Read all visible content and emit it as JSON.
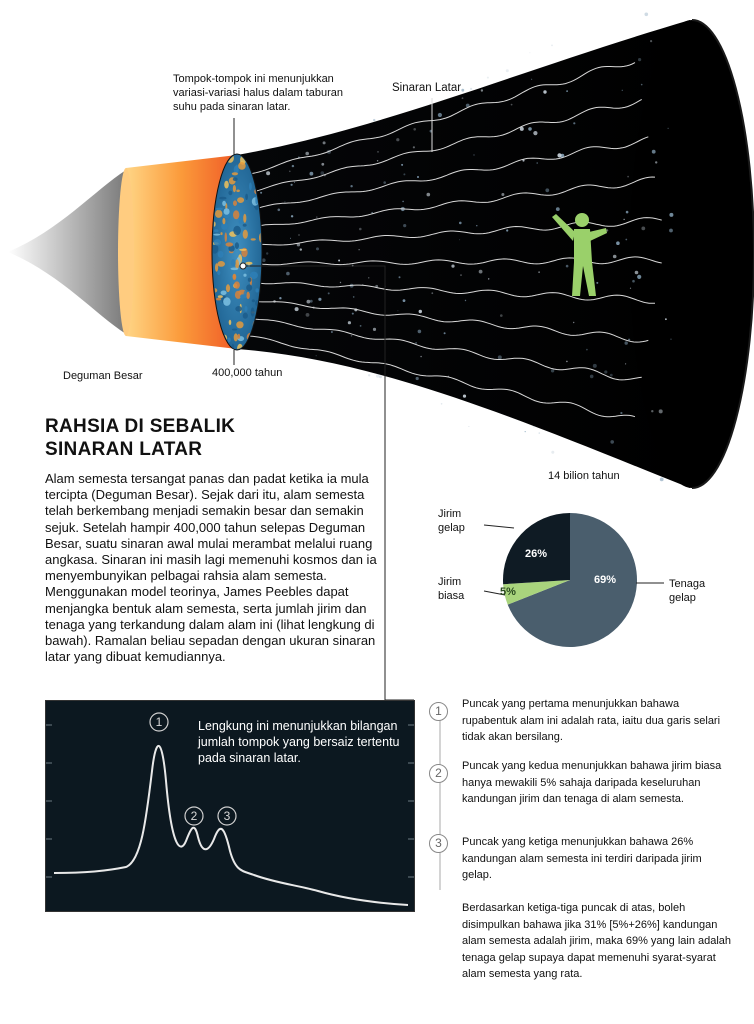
{
  "labels": {
    "fluctuations": "Tompok-tompok ini menunjukkan variasi-variasi halus dalam taburan suhu pada sinaran latar.",
    "background_radiation": "Sinaran Latar",
    "big_bang": "Deguman Besar",
    "years_400k": "400,000 tahun",
    "years_14b": "14 bilion tahun"
  },
  "article": {
    "title_line1": "RAHSIA DI SEBALIK",
    "title_line2": "SINARAN LATAR",
    "body": "Alam semesta tersangat panas dan padat ketika ia mula tercipta (Deguman Besar). Sejak dari itu, alam semesta telah berkembang menjadi semakin besar dan semakin sejuk. Setelah hampir 400,000 tahun selepas Deguman Besar, suatu sinaran awal mulai merambat melalui ruang angkasa. Sinaran ini masih lagi memenuhi kosmos dan ia menyembunyikan pelbagai rahsia alam semesta. Menggunakan model teorinya, James Peebles dapat menjangka bentuk alam semesta, serta jumlah jirim dan tenaga yang terkandung dalam alam ini (lihat lengkung di bawah). Ramalan beliau sepadan dengan ukuran sinaran latar yang dibuat kemudiannya."
  },
  "pie": {
    "slices": [
      {
        "label": "Tenaga gelap",
        "label_line1": "Tenaga",
        "label_line2": "gelap",
        "value": 69,
        "pct": "69%",
        "color": "#4a5e6d"
      },
      {
        "label": "Jirim biasa",
        "label_line1": "Jirim",
        "label_line2": "biasa",
        "value": 5,
        "pct": "5%",
        "color": "#a9d47d"
      },
      {
        "label": "Jirim gelap",
        "label_line1": "Jirim",
        "label_line2": "gelap",
        "value": 26,
        "pct": "26%",
        "color": "#0f1b24"
      }
    ]
  },
  "curve": {
    "caption": "Lengkung ini menunjukkan bilangan jumlah tompok yang bersaiz tertentu pada sinaran latar.",
    "peak1": "1",
    "peak2": "2",
    "peak3": "3"
  },
  "notes": [
    {
      "num": "1",
      "text": "Puncak yang pertama menunjukkan bahawa rupabentuk alam ini adalah rata, iaitu dua garis selari tidak akan bersilang."
    },
    {
      "num": "2",
      "text": "Puncak yang kedua menunjukkan bahawa jirim biasa hanya mewakili 5% sahaja daripada keseluruhan kandungan jirim dan tenaga di alam semesta."
    },
    {
      "num": "3",
      "text": "Puncak yang ketiga menunjukkan bahawa 26% kandungan alam semesta ini terdiri daripada jirim gelap."
    }
  ],
  "conclusion": "Berdasarkan ketiga-tiga puncak di atas, boleh disimpulkan bahawa jika 31% [5%+26%] kandungan alam semesta adalah jirim, maka 69% yang lain adalah tenaga gelap supaya dapat memenuhi syarat-syarat alam semesta yang rata.",
  "colors": {
    "space": "#000000",
    "big_bang_inner": "#ffd27a",
    "big_bang_outer": "#f05a28",
    "figure": "#9ad06a"
  }
}
